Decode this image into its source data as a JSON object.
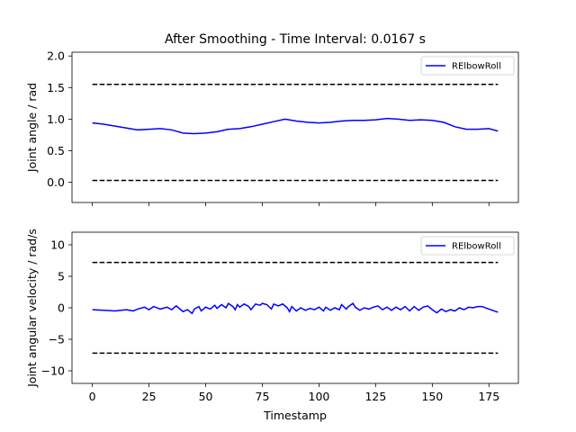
{
  "chart_data": [
    {
      "type": "line",
      "title": "After Smoothing - Time Interval: 0.0167 s",
      "xlabel": "",
      "ylabel": "Joint angle / rad",
      "xlim": [
        -9,
        188
      ],
      "ylim": [
        -0.32,
        2.06
      ],
      "x_ticks": [
        0,
        25,
        50,
        75,
        100,
        125,
        150,
        175
      ],
      "y_ticks": [
        0.0,
        0.5,
        1.0,
        1.5,
        2.0
      ],
      "y_tick_labels": [
        "0.0",
        "0.5",
        "1.0",
        "1.5",
        "2.0"
      ],
      "show_x_tick_labels": false,
      "grid": false,
      "legend_position": "top-right",
      "series": [
        {
          "name": "RElbowRoll",
          "color": "#0000ff",
          "style": "solid",
          "points": [
            [
              0,
              0.94
            ],
            [
              5,
              0.92
            ],
            [
              10,
              0.89
            ],
            [
              15,
              0.86
            ],
            [
              20,
              0.83
            ],
            [
              25,
              0.84
            ],
            [
              30,
              0.85
            ],
            [
              35,
              0.83
            ],
            [
              40,
              0.78
            ],
            [
              45,
              0.77
            ],
            [
              50,
              0.78
            ],
            [
              55,
              0.8
            ],
            [
              60,
              0.84
            ],
            [
              65,
              0.85
            ],
            [
              70,
              0.88
            ],
            [
              75,
              0.92
            ],
            [
              80,
              0.96
            ],
            [
              85,
              1.0
            ],
            [
              90,
              0.97
            ],
            [
              95,
              0.95
            ],
            [
              100,
              0.94
            ],
            [
              105,
              0.95
            ],
            [
              110,
              0.97
            ],
            [
              115,
              0.98
            ],
            [
              120,
              0.98
            ],
            [
              125,
              0.99
            ],
            [
              130,
              1.01
            ],
            [
              135,
              1.0
            ],
            [
              140,
              0.98
            ],
            [
              145,
              0.99
            ],
            [
              150,
              0.98
            ],
            [
              155,
              0.95
            ],
            [
              160,
              0.88
            ],
            [
              165,
              0.84
            ],
            [
              170,
              0.84
            ],
            [
              175,
              0.85
            ],
            [
              179,
              0.81
            ]
          ]
        },
        {
          "name": "",
          "color": "#000000",
          "style": "dashed",
          "points": [
            [
              0,
              1.55
            ],
            [
              179,
              1.55
            ]
          ]
        },
        {
          "name": "",
          "color": "#000000",
          "style": "dashed",
          "points": [
            [
              0,
              0.03
            ],
            [
              179,
              0.03
            ]
          ]
        }
      ]
    },
    {
      "type": "line",
      "title": "",
      "xlabel": "Timestamp",
      "ylabel": "Joint angular velocity / rad/s",
      "xlim": [
        -9,
        188
      ],
      "ylim": [
        -12,
        12
      ],
      "x_ticks": [
        0,
        25,
        50,
        75,
        100,
        125,
        150,
        175
      ],
      "x_tick_labels": [
        "0",
        "25",
        "50",
        "75",
        "100",
        "125",
        "150",
        "175"
      ],
      "y_ticks": [
        -10,
        -5,
        0,
        5,
        10
      ],
      "y_tick_labels": [
        "−10",
        "−5",
        "0",
        "5",
        "10"
      ],
      "show_x_tick_labels": true,
      "grid": false,
      "legend_position": "top-right",
      "series": [
        {
          "name": "RElbowRoll",
          "color": "#0000ff",
          "style": "solid",
          "points": [
            [
              0,
              -0.3
            ],
            [
              5,
              -0.4
            ],
            [
              10,
              -0.5
            ],
            [
              15,
              -0.3
            ],
            [
              18,
              -0.5
            ],
            [
              20,
              -0.2
            ],
            [
              23,
              0.1
            ],
            [
              25,
              -0.3
            ],
            [
              27,
              0.2
            ],
            [
              30,
              -0.2
            ],
            [
              33,
              0.1
            ],
            [
              35,
              -0.3
            ],
            [
              37,
              0.3
            ],
            [
              40,
              -0.6
            ],
            [
              42,
              -0.3
            ],
            [
              44,
              -0.9
            ],
            [
              45,
              -0.2
            ],
            [
              47,
              0.2
            ],
            [
              48,
              -0.5
            ],
            [
              50,
              0.1
            ],
            [
              52,
              -0.2
            ],
            [
              54,
              0.4
            ],
            [
              55,
              -0.1
            ],
            [
              57,
              0.5
            ],
            [
              59,
              0.0
            ],
            [
              60,
              0.7
            ],
            [
              62,
              0.2
            ],
            [
              63,
              -0.3
            ],
            [
              64,
              0.5
            ],
            [
              65,
              0.1
            ],
            [
              67,
              0.6
            ],
            [
              69,
              0.2
            ],
            [
              70,
              -0.3
            ],
            [
              72,
              0.6
            ],
            [
              74,
              0.4
            ],
            [
              75,
              0.7
            ],
            [
              77,
              0.5
            ],
            [
              79,
              -0.2
            ],
            [
              80,
              0.6
            ],
            [
              82,
              0.3
            ],
            [
              84,
              0.6
            ],
            [
              86,
              0.0
            ],
            [
              87,
              -0.6
            ],
            [
              88,
              0.2
            ],
            [
              90,
              -0.5
            ],
            [
              92,
              0.0
            ],
            [
              94,
              -0.4
            ],
            [
              96,
              -0.1
            ],
            [
              98,
              -0.3
            ],
            [
              100,
              0.1
            ],
            [
              102,
              -0.5
            ],
            [
              103,
              0.1
            ],
            [
              105,
              -0.4
            ],
            [
              107,
              0.0
            ],
            [
              109,
              -0.3
            ],
            [
              110,
              0.5
            ],
            [
              112,
              -0.2
            ],
            [
              113,
              0.2
            ],
            [
              115,
              0.7
            ],
            [
              116,
              0.1
            ],
            [
              118,
              -0.4
            ],
            [
              120,
              0.0
            ],
            [
              122,
              -0.2
            ],
            [
              124,
              0.1
            ],
            [
              126,
              0.3
            ],
            [
              128,
              -0.3
            ],
            [
              130,
              0.1
            ],
            [
              132,
              -0.4
            ],
            [
              134,
              0.1
            ],
            [
              136,
              -0.3
            ],
            [
              138,
              0.2
            ],
            [
              140,
              -0.5
            ],
            [
              142,
              0.2
            ],
            [
              144,
              -0.4
            ],
            [
              146,
              0.1
            ],
            [
              148,
              0.3
            ],
            [
              150,
              -0.3
            ],
            [
              152,
              -0.8
            ],
            [
              154,
              -0.2
            ],
            [
              156,
              -0.6
            ],
            [
              158,
              -0.3
            ],
            [
              160,
              -0.5
            ],
            [
              162,
              0.0
            ],
            [
              164,
              -0.3
            ],
            [
              166,
              0.1
            ],
            [
              168,
              0.0
            ],
            [
              170,
              0.2
            ],
            [
              172,
              0.2
            ],
            [
              175,
              -0.2
            ],
            [
              179,
              -0.7
            ]
          ]
        },
        {
          "name": "",
          "color": "#000000",
          "style": "dashed",
          "points": [
            [
              0,
              7.2
            ],
            [
              179,
              7.2
            ]
          ]
        },
        {
          "name": "",
          "color": "#000000",
          "style": "dashed",
          "points": [
            [
              0,
              -7.2
            ],
            [
              179,
              -7.2
            ]
          ]
        }
      ]
    }
  ]
}
